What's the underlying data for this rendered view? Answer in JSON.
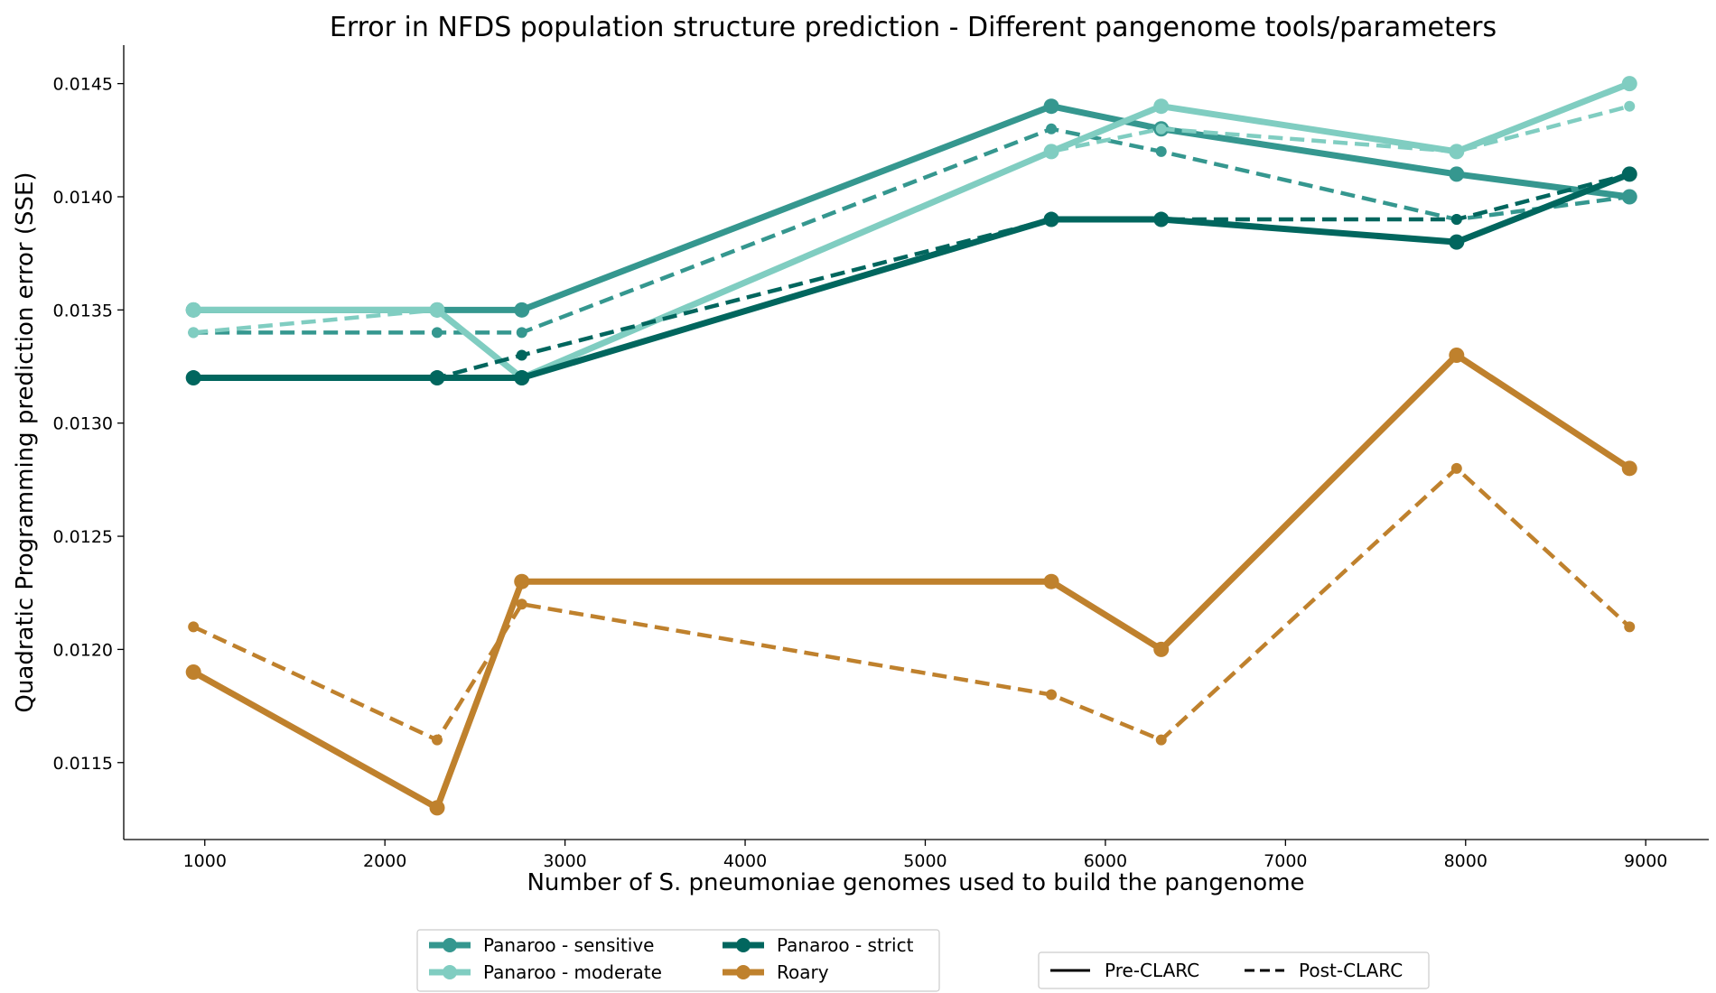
{
  "chart_data": {
    "type": "line",
    "title": "Error in NFDS population structure prediction - Different pangenome tools/parameters",
    "xlabel": "Number of S. pneumoniae genomes used to build the pangenome",
    "ylabel": "Quadratic Programming prediction error (SSE)",
    "xlim": [
      550,
      9350
    ],
    "ylim": [
      0.01116,
      0.01467
    ],
    "xticks": [
      "1000",
      "2000",
      "3000",
      "4000",
      "5000",
      "6000",
      "7000",
      "8000",
      "9000"
    ],
    "yticks": [
      "0.0115",
      "0.0120",
      "0.0125",
      "0.0130",
      "0.0135",
      "0.0140",
      "0.0145"
    ],
    "grid": false,
    "x": [
      937,
      2290,
      2760,
      5700,
      6310,
      7950,
      8910
    ],
    "series": [
      {
        "name": "Panaroo - sensitive",
        "color": "#35978f",
        "style": "solid",
        "values": [
          0.0135,
          0.0135,
          0.0135,
          0.0144,
          0.0143,
          0.0141,
          0.014
        ]
      },
      {
        "name": "Panaroo - sensitive",
        "color": "#35978f",
        "style": "dashed",
        "values": [
          0.0134,
          0.0134,
          0.0134,
          0.0143,
          0.0142,
          0.0139,
          0.014
        ]
      },
      {
        "name": "Panaroo - moderate",
        "color": "#80cdc1",
        "style": "solid",
        "values": [
          0.0135,
          0.0135,
          0.0132,
          0.0142,
          0.0144,
          0.0142,
          0.0145
        ]
      },
      {
        "name": "Panaroo - moderate",
        "color": "#80cdc1",
        "style": "dashed",
        "values": [
          0.0134,
          0.0135,
          0.0132,
          0.0142,
          0.0143,
          0.0142,
          0.0144
        ]
      },
      {
        "name": "Panaroo - strict",
        "color": "#01665e",
        "style": "solid",
        "values": [
          0.0132,
          0.0132,
          0.0132,
          0.0139,
          0.0139,
          0.0138,
          0.0141
        ]
      },
      {
        "name": "Panaroo - strict",
        "color": "#01665e",
        "style": "dashed",
        "values": [
          0.0132,
          0.0132,
          0.0133,
          0.0139,
          0.0139,
          0.0139,
          0.0141
        ]
      },
      {
        "name": "Roary",
        "color": "#bf812d",
        "style": "solid",
        "values": [
          0.0119,
          0.0113,
          0.0123,
          0.0123,
          0.012,
          0.0133,
          0.0128
        ]
      },
      {
        "name": "Roary",
        "color": "#bf812d",
        "style": "dashed",
        "values": [
          0.0121,
          0.0116,
          0.0122,
          0.0118,
          0.0116,
          0.0128,
          0.0121
        ]
      }
    ],
    "legend_tools": [
      {
        "label": "Panaroo - sensitive",
        "color": "#35978f"
      },
      {
        "label": "Panaroo - moderate",
        "color": "#80cdc1"
      },
      {
        "label": "Panaroo - strict",
        "color": "#01665e"
      },
      {
        "label": "Roary",
        "color": "#bf812d"
      }
    ],
    "legend_styles": [
      {
        "label": "Pre-CLARC",
        "style": "solid"
      },
      {
        "label": "Post-CLARC",
        "style": "dashed"
      }
    ],
    "legend_placement": "bottom-center"
  }
}
